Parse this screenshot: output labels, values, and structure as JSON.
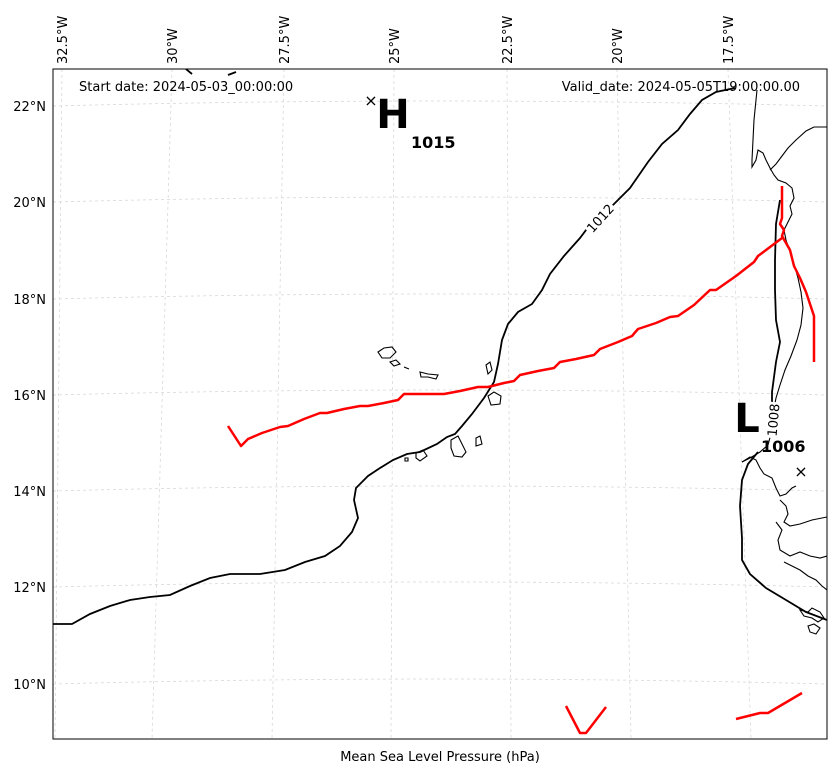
{
  "header": {
    "start_date": "Start date: 2024-05-03_00:00:00",
    "valid_date": "Valid_date: 2024-05-05T19:00:00.00"
  },
  "footer": {
    "caption": "Mean Sea Level Pressure (hPa)"
  },
  "axes": {
    "longitude_ticks": [
      "32.5°W",
      "30°W",
      "27.5°W",
      "25°W",
      "22.5°W",
      "20°W",
      "17.5°W"
    ],
    "latitude_ticks": [
      "22°N",
      "20°N",
      "18°N",
      "16°N",
      "14°N",
      "12°N",
      "10°N"
    ]
  },
  "pressure_centers": [
    {
      "symbol": "H",
      "value": "1015",
      "kind": "high"
    },
    {
      "symbol": "L",
      "value": "1006",
      "kind": "low"
    }
  ],
  "isobars": [
    {
      "label": "1012"
    },
    {
      "label": "1008"
    }
  ],
  "colors": {
    "track": "#ff0000",
    "isobar": "#000000",
    "grid": "#d8d8d8",
    "coast": "#000000"
  }
}
